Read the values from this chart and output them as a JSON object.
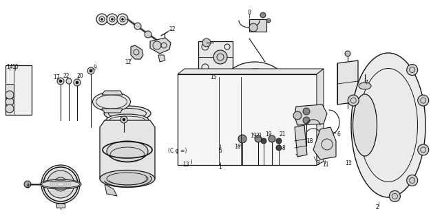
{
  "bg_color": "#ffffff",
  "line_color": "#111111",
  "fig_width": 6.26,
  "fig_height": 3.2,
  "dpi": 100
}
